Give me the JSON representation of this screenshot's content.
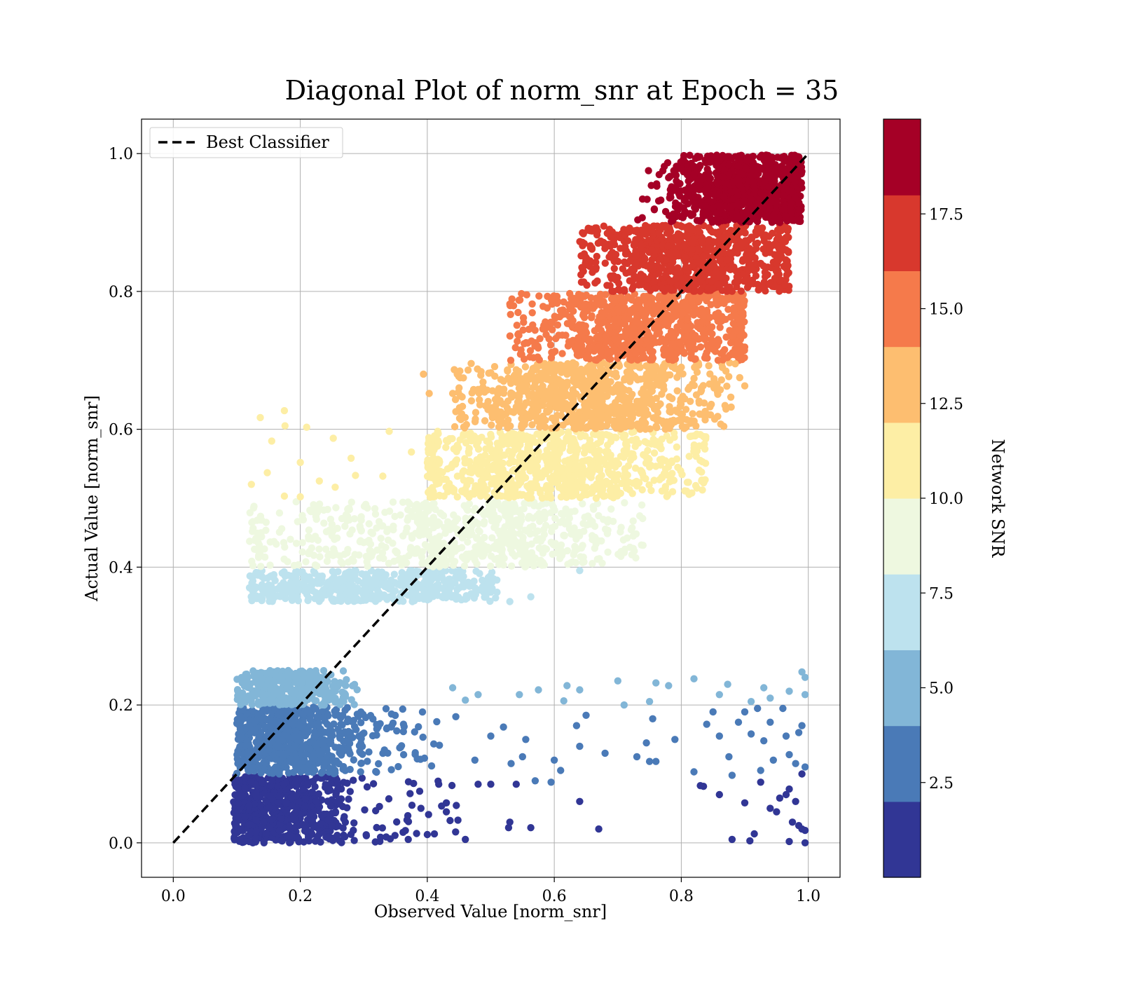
{
  "chart_data": {
    "type": "scatter",
    "title": "Diagonal Plot of norm_snr at Epoch = 35",
    "xlabel": "Observed Value [norm_snr]",
    "ylabel": "Actual Value [norm_snr]",
    "xlim": [
      -0.05,
      1.05
    ],
    "ylim": [
      -0.05,
      1.05
    ],
    "xticks": [
      0.0,
      0.2,
      0.4,
      0.6,
      0.8,
      1.0
    ],
    "yticks": [
      0.0,
      0.2,
      0.4,
      0.6,
      0.8,
      1.0
    ],
    "xtick_labels": [
      "0.0",
      "0.2",
      "0.4",
      "0.6",
      "0.8",
      "1.0"
    ],
    "ytick_labels": [
      "0.0",
      "0.2",
      "0.4",
      "0.6",
      "0.8",
      "1.0"
    ],
    "grid": true,
    "legend": {
      "placement": "top-left",
      "entries": [
        {
          "label": "Best Classifier",
          "style": "dashed",
          "color": "#000000"
        }
      ]
    },
    "reference_line": {
      "name": "Best Classifier",
      "x": [
        0.0,
        1.0
      ],
      "y": [
        0.0,
        1.0
      ]
    },
    "colorbar": {
      "label": "Network SNR",
      "range": [
        0,
        20
      ],
      "ticks": [
        2.5,
        5.0,
        7.5,
        10.0,
        12.5,
        15.0,
        17.5
      ],
      "tick_labels": [
        "2.5",
        "5.0",
        "7.5",
        "10.0",
        "12.5",
        "15.0",
        "17.5"
      ],
      "colors": [
        "#313695",
        "#4a7ab7",
        "#82b6d7",
        "#bde2ee",
        "#eef8e0",
        "#fdeea5",
        "#fdbe70",
        "#f57a4b",
        "#d8382d",
        "#a50026"
      ]
    },
    "bands": [
      {
        "snr_bin": [
          0,
          2
        ],
        "y_range": [
          0.0,
          0.1
        ],
        "color": "#313695"
      },
      {
        "snr_bin": [
          2,
          4
        ],
        "y_range": [
          0.1,
          0.2
        ],
        "color": "#4a7ab7"
      },
      {
        "snr_bin": [
          4,
          6
        ],
        "y_range": [
          0.2,
          0.25
        ],
        "color": "#82b6d7"
      },
      {
        "snr_bin": [
          6,
          8
        ],
        "y_range": [
          0.35,
          0.4
        ],
        "color": "#bde2ee"
      },
      {
        "snr_bin": [
          8,
          10
        ],
        "y_range": [
          0.4,
          0.5
        ],
        "color": "#eef8e0"
      },
      {
        "snr_bin": [
          10,
          12
        ],
        "y_range": [
          0.5,
          0.6
        ],
        "color": "#fdeea5"
      },
      {
        "snr_bin": [
          12,
          14
        ],
        "y_range": [
          0.6,
          0.7
        ],
        "color": "#fdbe70"
      },
      {
        "snr_bin": [
          14,
          16
        ],
        "y_range": [
          0.7,
          0.8
        ],
        "color": "#f57a4b"
      },
      {
        "snr_bin": [
          16,
          18
        ],
        "y_range": [
          0.8,
          0.9
        ],
        "color": "#d8382d"
      },
      {
        "snr_bin": [
          18,
          20
        ],
        "y_range": [
          0.9,
          1.0
        ],
        "color": "#a50026"
      }
    ],
    "clusters": [
      {
        "band": 0,
        "x_center": 0.165,
        "x_spread": 0.05,
        "x_min": 0.095,
        "x_max": 0.27,
        "y_min": 0.0,
        "y_max": 0.097,
        "count": 600
      },
      {
        "band": 0,
        "x_center": 0.32,
        "x_spread": 0.07,
        "x_min": 0.24,
        "x_max": 0.45,
        "y_min": 0.0,
        "y_max": 0.095,
        "count": 70
      },
      {
        "band": 1,
        "x_center": 0.18,
        "x_spread": 0.05,
        "x_min": 0.1,
        "x_max": 0.3,
        "y_min": 0.1,
        "y_max": 0.197,
        "count": 650
      },
      {
        "band": 1,
        "x_center": 0.32,
        "x_spread": 0.05,
        "x_min": 0.26,
        "x_max": 0.42,
        "y_min": 0.1,
        "y_max": 0.195,
        "count": 80
      },
      {
        "band": 2,
        "x_center": 0.185,
        "x_spread": 0.045,
        "x_min": 0.1,
        "x_max": 0.29,
        "y_min": 0.2,
        "y_max": 0.25,
        "count": 380
      },
      {
        "band": 3,
        "x_center": 0.3,
        "x_spread": 0.11,
        "x_min": 0.12,
        "x_max": 0.51,
        "y_min": 0.35,
        "y_max": 0.395,
        "count": 520
      },
      {
        "band": 4,
        "x_center": 0.3,
        "x_spread": 0.13,
        "x_min": 0.12,
        "x_max": 0.58,
        "y_min": 0.4,
        "y_max": 0.495,
        "count": 320
      },
      {
        "band": 4,
        "x_center": 0.55,
        "x_spread": 0.09,
        "x_min": 0.38,
        "x_max": 0.74,
        "y_min": 0.4,
        "y_max": 0.495,
        "count": 380
      },
      {
        "band": 5,
        "x_center": 0.6,
        "x_spread": 0.12,
        "x_min": 0.4,
        "x_max": 0.84,
        "y_min": 0.5,
        "y_max": 0.597,
        "count": 850
      },
      {
        "band": 6,
        "x_center": 0.66,
        "x_spread": 0.1,
        "x_min": 0.44,
        "x_max": 0.88,
        "y_min": 0.6,
        "y_max": 0.697,
        "count": 850
      },
      {
        "band": 7,
        "x_center": 0.75,
        "x_spread": 0.1,
        "x_min": 0.53,
        "x_max": 0.9,
        "y_min": 0.7,
        "y_max": 0.797,
        "count": 850
      },
      {
        "band": 8,
        "x_center": 0.82,
        "x_spread": 0.09,
        "x_min": 0.64,
        "x_max": 0.97,
        "y_min": 0.8,
        "y_max": 0.897,
        "count": 850
      },
      {
        "band": 9,
        "x_center": 0.9,
        "x_spread": 0.06,
        "x_min": 0.73,
        "x_max": 0.99,
        "y_min": 0.9,
        "y_max": 0.998,
        "count": 850
      }
    ],
    "outliers": [
      [
        0.137,
        0.617,
        6
      ],
      [
        0.175,
        0.627,
        6
      ],
      [
        0.176,
        0.605,
        6
      ],
      [
        0.21,
        0.603,
        6
      ],
      [
        0.252,
        0.587,
        6
      ],
      [
        0.155,
        0.583,
        6
      ],
      [
        0.28,
        0.558,
        6
      ],
      [
        0.2,
        0.552,
        6
      ],
      [
        0.287,
        0.533,
        6
      ],
      [
        0.33,
        0.532,
        6
      ],
      [
        0.23,
        0.525,
        6
      ],
      [
        0.148,
        0.537,
        6
      ],
      [
        0.123,
        0.52,
        6
      ],
      [
        0.255,
        0.516,
        6
      ],
      [
        0.2,
        0.502,
        6
      ],
      [
        0.175,
        0.503,
        6
      ],
      [
        0.34,
        0.597,
        6
      ],
      [
        0.375,
        0.567,
        6
      ],
      [
        0.394,
        0.68,
        7
      ],
      [
        0.403,
        0.652,
        7
      ],
      [
        0.44,
        0.652,
        7
      ],
      [
        0.45,
        0.66,
        7
      ],
      [
        0.885,
        0.695,
        7
      ],
      [
        0.892,
        0.675,
        7
      ],
      [
        0.785,
        0.552,
        6
      ],
      [
        0.832,
        0.525,
        6
      ],
      [
        0.658,
        0.53,
        6
      ],
      [
        0.9,
        0.663,
        7
      ],
      [
        0.64,
        0.395,
        4
      ],
      [
        0.563,
        0.357,
        4
      ],
      [
        0.53,
        0.35,
        4
      ],
      [
        0.61,
        0.425,
        5
      ],
      [
        0.66,
        0.44,
        5
      ],
      [
        0.46,
        0.207,
        3
      ],
      [
        0.48,
        0.215,
        3
      ],
      [
        0.545,
        0.215,
        3
      ],
      [
        0.575,
        0.222,
        3
      ],
      [
        0.62,
        0.228,
        3
      ],
      [
        0.64,
        0.222,
        3
      ],
      [
        0.7,
        0.235,
        3
      ],
      [
        0.75,
        0.205,
        3
      ],
      [
        0.76,
        0.232,
        3
      ],
      [
        0.78,
        0.228,
        3
      ],
      [
        0.82,
        0.238,
        3
      ],
      [
        0.873,
        0.23,
        3
      ],
      [
        0.91,
        0.205,
        3
      ],
      [
        0.94,
        0.21,
        3
      ],
      [
        0.97,
        0.22,
        3
      ],
      [
        0.99,
        0.248,
        3
      ],
      [
        0.995,
        0.24,
        3
      ],
      [
        0.995,
        0.215,
        3
      ],
      [
        0.93,
        0.225,
        3
      ],
      [
        0.86,
        0.215,
        3
      ],
      [
        0.71,
        0.2,
        3
      ],
      [
        0.44,
        0.225,
        3
      ],
      [
        0.615,
        0.206,
        3
      ],
      [
        0.445,
        0.183,
        2
      ],
      [
        0.5,
        0.155,
        2
      ],
      [
        0.52,
        0.168,
        2
      ],
      [
        0.555,
        0.15,
        2
      ],
      [
        0.595,
        0.088,
        2
      ],
      [
        0.6,
        0.12,
        2
      ],
      [
        0.64,
        0.14,
        2
      ],
      [
        0.65,
        0.185,
        2
      ],
      [
        0.635,
        0.17,
        2
      ],
      [
        0.68,
        0.13,
        2
      ],
      [
        0.73,
        0.125,
        2
      ],
      [
        0.745,
        0.145,
        2
      ],
      [
        0.75,
        0.118,
        2
      ],
      [
        0.76,
        0.118,
        2
      ],
      [
        0.755,
        0.18,
        2
      ],
      [
        0.79,
        0.15,
        2
      ],
      [
        0.82,
        0.103,
        2
      ],
      [
        0.84,
        0.172,
        2
      ],
      [
        0.85,
        0.19,
        2
      ],
      [
        0.86,
        0.155,
        2
      ],
      [
        0.875,
        0.125,
        2
      ],
      [
        0.88,
        0.098,
        2
      ],
      [
        0.89,
        0.175,
        2
      ],
      [
        0.9,
        0.19,
        2
      ],
      [
        0.91,
        0.158,
        2
      ],
      [
        0.92,
        0.195,
        2
      ],
      [
        0.93,
        0.148,
        2
      ],
      [
        0.94,
        0.175,
        2
      ],
      [
        0.96,
        0.195,
        2
      ],
      [
        0.965,
        0.155,
        2
      ],
      [
        0.97,
        0.128,
        2
      ],
      [
        0.98,
        0.115,
        2
      ],
      [
        0.985,
        0.16,
        2
      ],
      [
        0.99,
        0.17,
        2
      ],
      [
        0.995,
        0.11,
        2
      ],
      [
        0.532,
        0.115,
        2
      ],
      [
        0.55,
        0.125,
        2
      ],
      [
        0.57,
        0.09,
        2
      ],
      [
        0.61,
        0.105,
        2
      ],
      [
        0.475,
        0.12,
        2
      ],
      [
        0.945,
        0.12,
        2
      ],
      [
        0.925,
        0.105,
        2
      ],
      [
        0.46,
        0.005,
        1
      ],
      [
        0.528,
        0.022,
        1
      ],
      [
        0.53,
        0.03,
        1
      ],
      [
        0.563,
        0.022,
        1
      ],
      [
        0.64,
        0.06,
        1
      ],
      [
        0.67,
        0.02,
        1
      ],
      [
        0.83,
        0.083,
        1
      ],
      [
        0.835,
        0.082,
        1
      ],
      [
        0.86,
        0.07,
        1
      ],
      [
        0.88,
        0.005,
        1
      ],
      [
        0.9,
        0.058,
        1
      ],
      [
        0.908,
        0.003,
        1
      ],
      [
        0.915,
        0.013,
        1
      ],
      [
        0.925,
        0.088,
        1
      ],
      [
        0.94,
        0.05,
        1
      ],
      [
        0.95,
        0.045,
        1
      ],
      [
        0.955,
        0.065,
        1
      ],
      [
        0.965,
        0.07,
        1
      ],
      [
        0.97,
        0.078,
        1
      ],
      [
        0.975,
        0.03,
        1
      ],
      [
        0.98,
        0.06,
        1
      ],
      [
        0.985,
        0.025,
        1
      ],
      [
        0.99,
        0.02,
        1
      ],
      [
        0.995,
        0.018,
        1
      ],
      [
        0.995,
        0.0,
        1
      ],
      [
        0.99,
        0.1,
        1
      ],
      [
        0.97,
        0.002,
        1
      ],
      [
        0.48,
        0.085,
        1
      ],
      [
        0.5,
        0.085,
        1
      ],
      [
        0.54,
        0.085,
        1
      ],
      [
        0.43,
        0.058,
        1
      ],
      [
        0.43,
        0.045,
        1
      ],
      [
        0.4,
        0.012,
        1
      ],
      [
        0.418,
        0.085,
        1
      ],
      [
        0.39,
        0.05,
        1
      ],
      [
        0.37,
        0.005,
        1
      ]
    ]
  }
}
